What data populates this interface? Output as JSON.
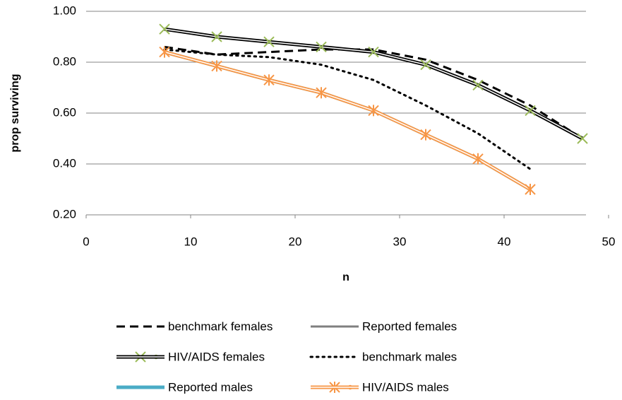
{
  "chart_data": {
    "type": "line",
    "x_label": "n",
    "y_label": "prop surviving",
    "x": [
      7.5,
      12.5,
      17.5,
      22.5,
      27.5,
      32.5,
      37.5,
      42.5,
      47.5
    ],
    "xlim": [
      0,
      50
    ],
    "xticks": [
      0,
      10,
      20,
      30,
      40,
      50
    ],
    "ylim": [
      0.2,
      1.0
    ],
    "yticks": [
      {
        "value": 0.2,
        "label": "0.20"
      },
      {
        "value": 0.4,
        "label": "0.40"
      },
      {
        "value": 0.6,
        "label": "0.60"
      },
      {
        "value": 0.8,
        "label": "0.80"
      },
      {
        "value": 1.0,
        "label": "1.00"
      }
    ],
    "grid": true,
    "series": [
      {
        "name": "benchmark females",
        "color": "#000000",
        "dash": "dashed",
        "width": 3,
        "marker": "none",
        "values": [
          0.86,
          0.83,
          0.84,
          0.85,
          0.85,
          0.81,
          0.73,
          0.63,
          0.5
        ]
      },
      {
        "name": "Reported females",
        "color": "#7f7f7f",
        "dash": "solid",
        "width": 3,
        "marker": "none",
        "values": [
          0.93,
          0.9,
          0.88,
          0.86,
          0.84,
          0.79,
          0.71,
          0.61,
          0.5
        ]
      },
      {
        "name": "HIV/AIDS females",
        "color": "#9bbb59",
        "dash": "double",
        "width": 3,
        "marker": "x",
        "values": [
          0.93,
          0.9,
          0.88,
          0.86,
          0.84,
          0.79,
          0.71,
          0.61,
          0.5
        ]
      },
      {
        "name": "benchmark males",
        "color": "#000000",
        "dash": "dotted",
        "width": 3,
        "marker": "none",
        "values": [
          0.85,
          0.83,
          0.82,
          0.79,
          0.73,
          0.63,
          0.52,
          0.38,
          null
        ]
      },
      {
        "name": "Reported males",
        "color": "#4bacc6",
        "dash": "solid",
        "width": 5,
        "marker": "none",
        "values": [
          0.84,
          0.785,
          0.73,
          0.68,
          0.61,
          0.515,
          0.42,
          0.3,
          null
        ]
      },
      {
        "name": "HIV/AIDS males",
        "color": "#f79646",
        "dash": "double",
        "width": 3,
        "marker": "asterisk",
        "values": [
          0.84,
          0.785,
          0.73,
          0.68,
          0.61,
          0.515,
          0.42,
          0.3,
          null
        ]
      }
    ]
  }
}
